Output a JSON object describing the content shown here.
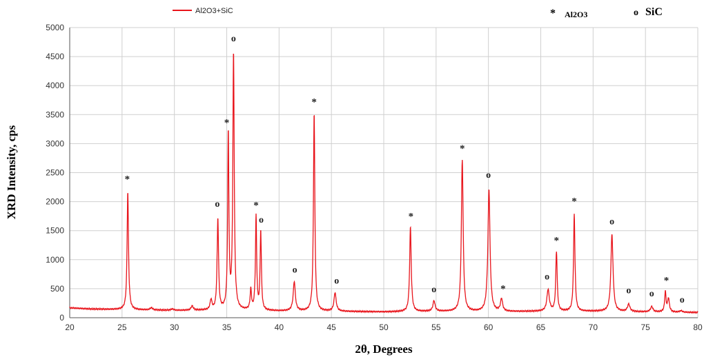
{
  "chart_data": {
    "type": "line",
    "title": "",
    "xlabel": "2θ, Degrees",
    "ylabel": "XRD Intensity, cps",
    "xlim": [
      20,
      80
    ],
    "ylim": [
      0,
      5000
    ],
    "xticks": [
      "20",
      "25",
      "30",
      "35",
      "40",
      "45",
      "50",
      "55",
      "60",
      "65",
      "70",
      "75",
      "80"
    ],
    "yticks": [
      "0",
      "500",
      "1000",
      "1500",
      "2000",
      "2500",
      "3000",
      "3500",
      "4000",
      "4500",
      "5000"
    ],
    "grid": true,
    "legend_position": "top-left",
    "series": [
      {
        "name": "Al2O3+SiC",
        "color": "#e8141b",
        "baseline": [
          [
            20,
            170
          ],
          [
            22,
            150
          ],
          [
            25,
            140
          ],
          [
            30,
            125
          ],
          [
            35,
            130
          ],
          [
            40,
            115
          ],
          [
            45,
            110
          ],
          [
            50,
            100
          ],
          [
            55,
            110
          ],
          [
            60,
            100
          ],
          [
            65,
            110
          ],
          [
            70,
            110
          ],
          [
            75,
            100
          ],
          [
            80,
            90
          ]
        ],
        "peaks": [
          {
            "x": 25.55,
            "y": 2180,
            "w": 0.08
          },
          {
            "x": 27.8,
            "y": 170,
            "w": 0.15
          },
          {
            "x": 29.8,
            "y": 150,
            "w": 0.15
          },
          {
            "x": 31.7,
            "y": 200,
            "w": 0.12
          },
          {
            "x": 33.5,
            "y": 300,
            "w": 0.1
          },
          {
            "x": 34.15,
            "y": 1700,
            "w": 0.08
          },
          {
            "x": 35.15,
            "y": 3160,
            "w": 0.07
          },
          {
            "x": 35.65,
            "y": 4540,
            "w": 0.08
          },
          {
            "x": 37.3,
            "y": 470,
            "w": 0.08
          },
          {
            "x": 37.8,
            "y": 1740,
            "w": 0.07
          },
          {
            "x": 38.25,
            "y": 1480,
            "w": 0.07
          },
          {
            "x": 41.45,
            "y": 620,
            "w": 0.12
          },
          {
            "x": 43.35,
            "y": 3530,
            "w": 0.08
          },
          {
            "x": 45.35,
            "y": 430,
            "w": 0.12
          },
          {
            "x": 52.55,
            "y": 1560,
            "w": 0.09
          },
          {
            "x": 54.8,
            "y": 290,
            "w": 0.12
          },
          {
            "x": 57.5,
            "y": 2710,
            "w": 0.1
          },
          {
            "x": 60.05,
            "y": 2210,
            "w": 0.12
          },
          {
            "x": 61.25,
            "y": 320,
            "w": 0.12
          },
          {
            "x": 65.7,
            "y": 480,
            "w": 0.14
          },
          {
            "x": 66.5,
            "y": 1130,
            "w": 0.08
          },
          {
            "x": 68.2,
            "y": 1790,
            "w": 0.08
          },
          {
            "x": 71.8,
            "y": 1440,
            "w": 0.12
          },
          {
            "x": 73.4,
            "y": 230,
            "w": 0.14
          },
          {
            "x": 75.6,
            "y": 190,
            "w": 0.14
          },
          {
            "x": 76.9,
            "y": 440,
            "w": 0.08
          },
          {
            "x": 77.2,
            "y": 330,
            "w": 0.1
          },
          {
            "x": 78.4,
            "y": 120,
            "w": 0.14
          }
        ]
      }
    ],
    "peak_labels": [
      {
        "x": 25.5,
        "y": 2430,
        "text": "*"
      },
      {
        "x": 34.1,
        "y": 1910,
        "text": "o"
      },
      {
        "x": 35.0,
        "y": 3400,
        "text": "*"
      },
      {
        "x": 35.65,
        "y": 4760,
        "text": "o"
      },
      {
        "x": 37.8,
        "y": 1980,
        "text": "*"
      },
      {
        "x": 38.3,
        "y": 1640,
        "text": "o"
      },
      {
        "x": 41.5,
        "y": 780,
        "text": "o"
      },
      {
        "x": 43.35,
        "y": 3760,
        "text": "*"
      },
      {
        "x": 45.5,
        "y": 590,
        "text": "o"
      },
      {
        "x": 52.6,
        "y": 1790,
        "text": "*"
      },
      {
        "x": 54.8,
        "y": 440,
        "text": "o"
      },
      {
        "x": 57.5,
        "y": 2960,
        "text": "*"
      },
      {
        "x": 60.0,
        "y": 2410,
        "text": "o"
      },
      {
        "x": 61.4,
        "y": 540,
        "text": "*"
      },
      {
        "x": 65.6,
        "y": 660,
        "text": "o"
      },
      {
        "x": 66.5,
        "y": 1370,
        "text": "*"
      },
      {
        "x": 68.2,
        "y": 2050,
        "text": "*"
      },
      {
        "x": 71.8,
        "y": 1610,
        "text": "o"
      },
      {
        "x": 73.4,
        "y": 420,
        "text": "o"
      },
      {
        "x": 75.6,
        "y": 370,
        "text": "o"
      },
      {
        "x": 77.0,
        "y": 680,
        "text": "*"
      },
      {
        "x": 78.5,
        "y": 260,
        "text": "o"
      }
    ]
  },
  "legend": {
    "series_label": "Al2O3+SiC"
  },
  "key": {
    "al2o3_symbol": "*",
    "al2o3_label": "Al2O3",
    "sic_symbol": "o",
    "sic_label": "SiC"
  }
}
